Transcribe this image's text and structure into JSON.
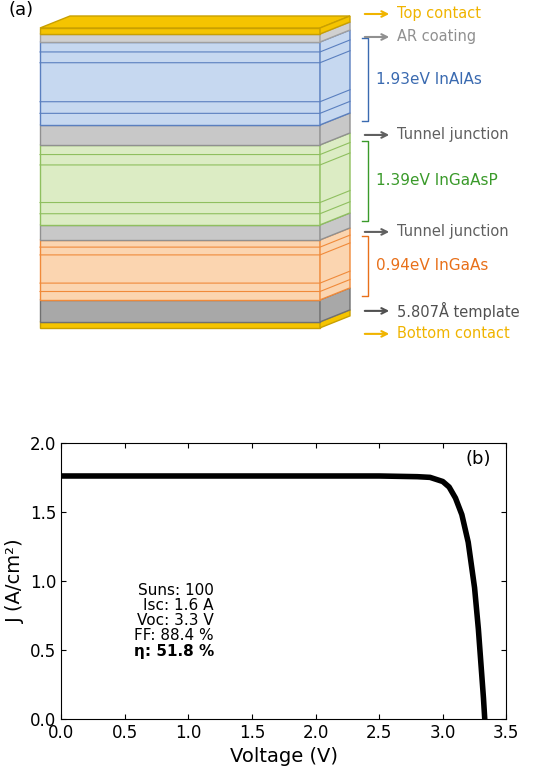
{
  "diagram": {
    "panel_label": "(a)",
    "layers": [
      "Top contact",
      "AR coating",
      "1.93eV InAlAs",
      "Tunnel junction",
      "1.39eV InGaAsP",
      "Tunnel junction",
      "0.94eV InGaAs",
      "5.807Å template",
      "Bottom contact"
    ]
  },
  "chart_data": {
    "type": "line",
    "panel_label": "(b)",
    "x_label": "Voltage (V)",
    "y_label": "J (A/cm²)",
    "x": [
      0.0,
      0.5,
      1.0,
      1.5,
      2.0,
      2.5,
      2.8,
      2.9,
      3.0,
      3.05,
      3.1,
      3.15,
      3.2,
      3.25,
      3.28,
      3.3,
      3.32,
      3.33
    ],
    "values": [
      1.76,
      1.76,
      1.76,
      1.76,
      1.76,
      1.76,
      1.755,
      1.75,
      1.72,
      1.68,
      1.6,
      1.48,
      1.28,
      0.95,
      0.65,
      0.4,
      0.15,
      0.0
    ],
    "color": "#000000",
    "xlim": [
      0.0,
      3.5
    ],
    "ylim": [
      0.0,
      2.0
    ],
    "xticks": [
      0.0,
      0.5,
      1.0,
      1.5,
      2.0,
      2.5,
      3.0,
      3.5
    ],
    "yticks": [
      0.0,
      0.5,
      1.0,
      1.5,
      2.0
    ],
    "annotations": [
      "Suns: 100",
      "Isc: 1.6 A",
      "Voc: 3.3 V",
      "FF: 88.4 %",
      "η: 51.8 %"
    ]
  }
}
